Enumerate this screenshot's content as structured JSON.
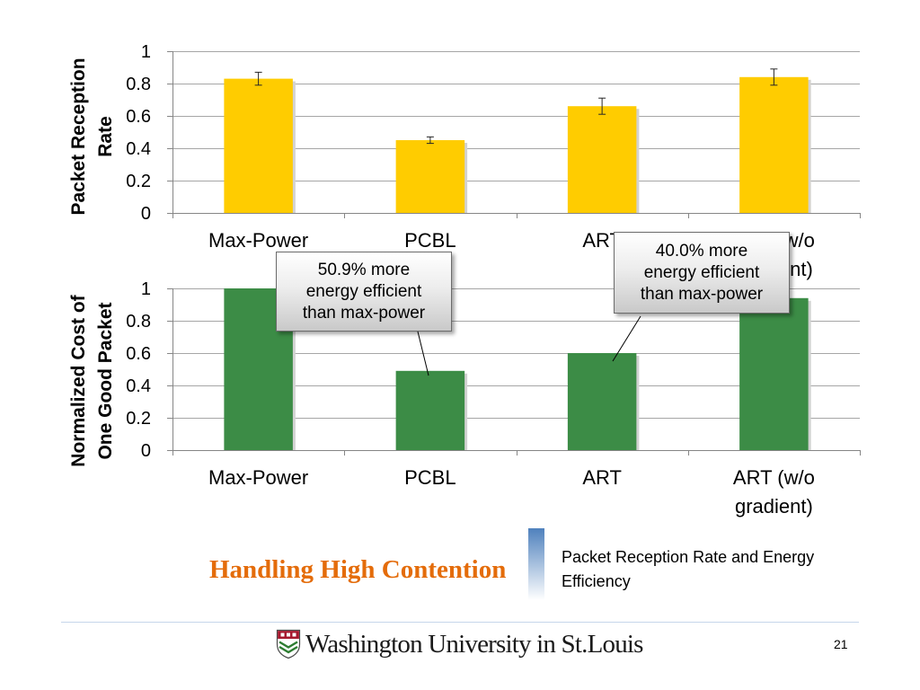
{
  "slide": {
    "title": "Handling High Contention",
    "caption": "Packet Reception Rate and Energy Efficiency",
    "page_number": "21",
    "logo": {
      "text": "Washington University in St.Louis",
      "icon": "university-shield-icon"
    }
  },
  "callouts": [
    {
      "text": "50.9% more energy efficient than max-power"
    },
    {
      "text": "40.0% more energy efficient than max-power"
    }
  ],
  "colors": {
    "title": "#E46C0A",
    "accent_bar": "#4F81BD"
  },
  "chart_data": [
    {
      "type": "bar",
      "categories": [
        "Max-Power",
        "PCBL",
        "ART",
        "ART (w/o gradient)"
      ],
      "values": [
        0.83,
        0.45,
        0.66,
        0.84
      ],
      "error": [
        0.04,
        0.02,
        0.05,
        0.05
      ],
      "ylabel": "Packet Reception Rate",
      "ylim": [
        0,
        1
      ],
      "yticks": [
        "0",
        "0.2",
        "0.4",
        "0.6",
        "0.8",
        "1"
      ],
      "grid": true,
      "color": "#FFCC00"
    },
    {
      "type": "bar",
      "categories": [
        "Max-Power",
        "PCBL",
        "ART",
        "ART (w/o gradient)"
      ],
      "values": [
        1.0,
        0.49,
        0.6,
        0.94
      ],
      "ylabel": "Normalized Cost of One Good Packet",
      "ylim": [
        0,
        1
      ],
      "yticks": [
        "0",
        "0.2",
        "0.4",
        "0.6",
        "0.8",
        "1"
      ],
      "grid": true,
      "color": "#3C8C46"
    }
  ]
}
